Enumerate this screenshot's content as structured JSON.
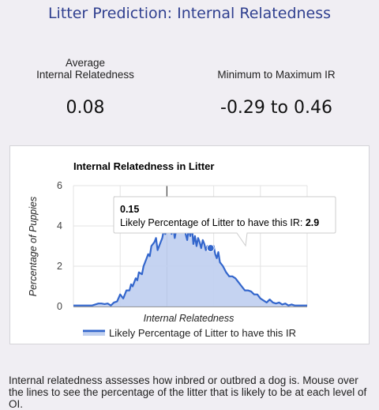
{
  "header": {
    "title": "Litter Prediction: Internal Relatedness"
  },
  "stats": {
    "average_label_line1": "Average",
    "average_label_line2": "Internal Relatedness",
    "average_value": "0.08",
    "range_label": "Minimum to Maximum IR",
    "range_value": "-0.29 to 0.46"
  },
  "description": "Internal relatedness assesses how inbred or outbred a dog is. Mouse over the lines to see the percentage of the litter that is likely to be at each level of OI.",
  "tooltip": {
    "x_value": "0.15",
    "label": "Likely Percentage of Litter to have this IR: ",
    "y_value": "2.9"
  },
  "colors": {
    "title": "#2f3f8f",
    "line": "#3366cc",
    "area": "#c2d1f0"
  },
  "chart_data": {
    "type": "area",
    "title": "Internal Relatedness in Litter",
    "xlabel": "Internal Relatedness",
    "ylabel": "Percentage of Puppies",
    "ylim": [
      0,
      6
    ],
    "yticks": [
      0,
      2,
      4,
      6
    ],
    "xlim": [
      -0.29,
      0.46
    ],
    "grid": true,
    "legend": "bottom",
    "series": [
      {
        "name": "Likely Percentage of Litter to have this IR",
        "x": [
          -0.29,
          -0.27,
          -0.25,
          -0.23,
          -0.21,
          -0.2,
          -0.19,
          -0.18,
          -0.17,
          -0.16,
          -0.15,
          -0.14,
          -0.13,
          -0.12,
          -0.11,
          -0.105,
          -0.1,
          -0.09,
          -0.085,
          -0.08,
          -0.07,
          -0.065,
          -0.06,
          -0.05,
          -0.045,
          -0.04,
          -0.03,
          -0.025,
          -0.02,
          -0.01,
          -0.005,
          0.0,
          0.005,
          0.01,
          0.015,
          0.02,
          0.025,
          0.03,
          0.035,
          0.04,
          0.045,
          0.05,
          0.055,
          0.06,
          0.065,
          0.07,
          0.075,
          0.08,
          0.085,
          0.09,
          0.095,
          0.1,
          0.105,
          0.11,
          0.115,
          0.12,
          0.125,
          0.13,
          0.135,
          0.14,
          0.145,
          0.15,
          0.155,
          0.16,
          0.165,
          0.17,
          0.175,
          0.18,
          0.19,
          0.2,
          0.21,
          0.22,
          0.23,
          0.24,
          0.25,
          0.26,
          0.27,
          0.28,
          0.29,
          0.3,
          0.31,
          0.32,
          0.33,
          0.34,
          0.35,
          0.36,
          0.37,
          0.38,
          0.39,
          0.4,
          0.41,
          0.42,
          0.43,
          0.44,
          0.46
        ],
        "values": [
          0.05,
          0.05,
          0.05,
          0.05,
          0.15,
          0.15,
          0.12,
          0.15,
          0.05,
          0.2,
          0.25,
          0.6,
          0.4,
          0.8,
          0.8,
          1.1,
          1.0,
          1.4,
          1.3,
          1.7,
          1.6,
          2.0,
          2.2,
          2.6,
          2.5,
          3.0,
          3.2,
          3.4,
          2.8,
          3.2,
          3.4,
          3.8,
          3.6,
          4.1,
          3.9,
          4.4,
          3.6,
          4.0,
          3.4,
          3.8,
          4.2,
          3.9,
          4.5,
          3.7,
          4.2,
          3.6,
          3.3,
          3.9,
          3.5,
          4.0,
          3.1,
          3.5,
          3.0,
          3.4,
          3.2,
          2.9,
          3.3,
          3.1,
          2.8,
          3.0,
          2.9,
          2.9,
          2.8,
          3.0,
          2.6,
          2.4,
          2.7,
          2.2,
          2.0,
          1.7,
          1.5,
          1.5,
          1.4,
          1.2,
          1.0,
          0.8,
          0.8,
          0.75,
          0.6,
          0.6,
          0.4,
          0.3,
          0.2,
          0.35,
          0.2,
          0.15,
          0.2,
          0.1,
          0.15,
          0.05,
          0.1,
          0.05,
          0.05,
          0.05,
          0.05
        ]
      }
    ]
  }
}
